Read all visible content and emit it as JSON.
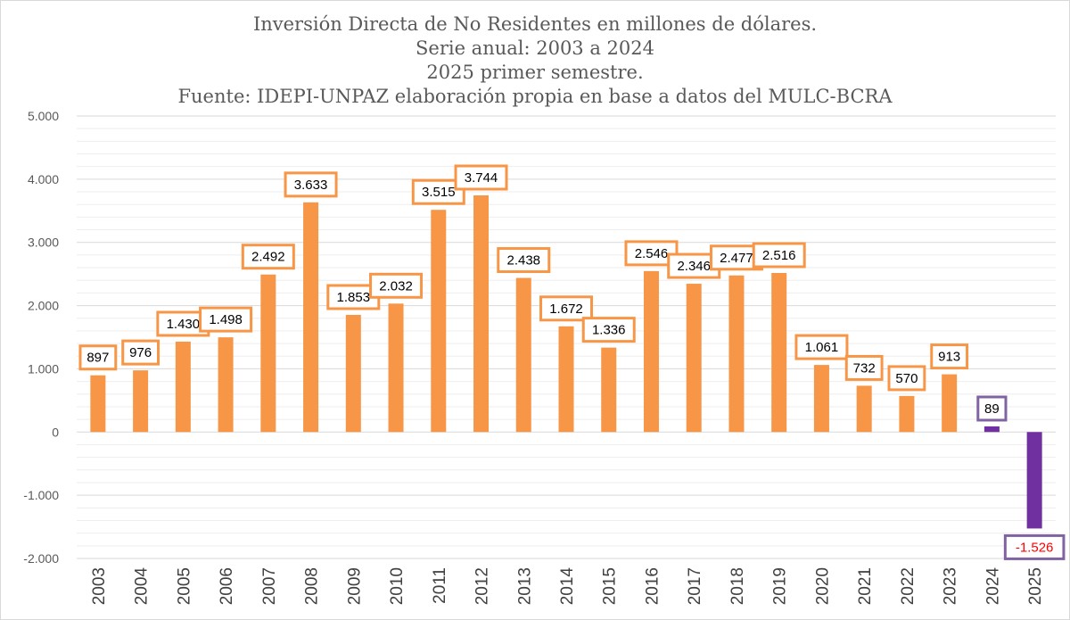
{
  "chart_data": {
    "type": "bar",
    "title_lines": [
      "Inversión Directa de No Residentes en millones de dólares.",
      "Serie anual: 2003 a 2024",
      "2025 primer semestre.",
      "Fuente: IDEPI-UNPAZ elaboración propia en base a datos del MULC-BCRA"
    ],
    "categories": [
      "2003",
      "2004",
      "2005",
      "2006",
      "2007",
      "2008",
      "2009",
      "2010",
      "2011",
      "2012",
      "2013",
      "2014",
      "2015",
      "2016",
      "2017",
      "2018",
      "2019",
      "2020",
      "2021",
      "2022",
      "2023",
      "2024",
      "2025"
    ],
    "values": [
      897,
      976,
      1430,
      1498,
      2492,
      3633,
      1853,
      2032,
      3515,
      3744,
      2438,
      1672,
      1336,
      2546,
      2346,
      2477,
      2516,
      1061,
      732,
      570,
      913,
      89,
      -1526
    ],
    "data_labels": [
      "897",
      "976",
      "1.430",
      "1.498",
      "2.492",
      "3.633",
      "1.853",
      "2.032",
      "3.515",
      "3.744",
      "2.438",
      "1.672",
      "1.336",
      "2.546",
      "2.346",
      "2.477",
      "2.516",
      "1.061",
      "732",
      "570",
      "913",
      "89",
      "-1.526"
    ],
    "y_ticks": [
      5000,
      4000,
      3000,
      2000,
      1000,
      0,
      -1000,
      -2000
    ],
    "y_tick_labels": [
      "5.000",
      "4.000",
      "3.000",
      "2.000",
      "1.000",
      "0",
      "-1.000",
      "-2.000"
    ],
    "ylim": [
      -2000,
      5000
    ],
    "grid": true,
    "colors": {
      "bar": "#f79646",
      "bar_highlight": "#7030a0",
      "label_border": "#f79646",
      "label_border_highlight": "#8064a2",
      "label_text": "#000000",
      "negative_label_text": "#ff0000",
      "grid": "#d9d9d9"
    },
    "highlight_categories": [
      "2024",
      "2025"
    ]
  }
}
